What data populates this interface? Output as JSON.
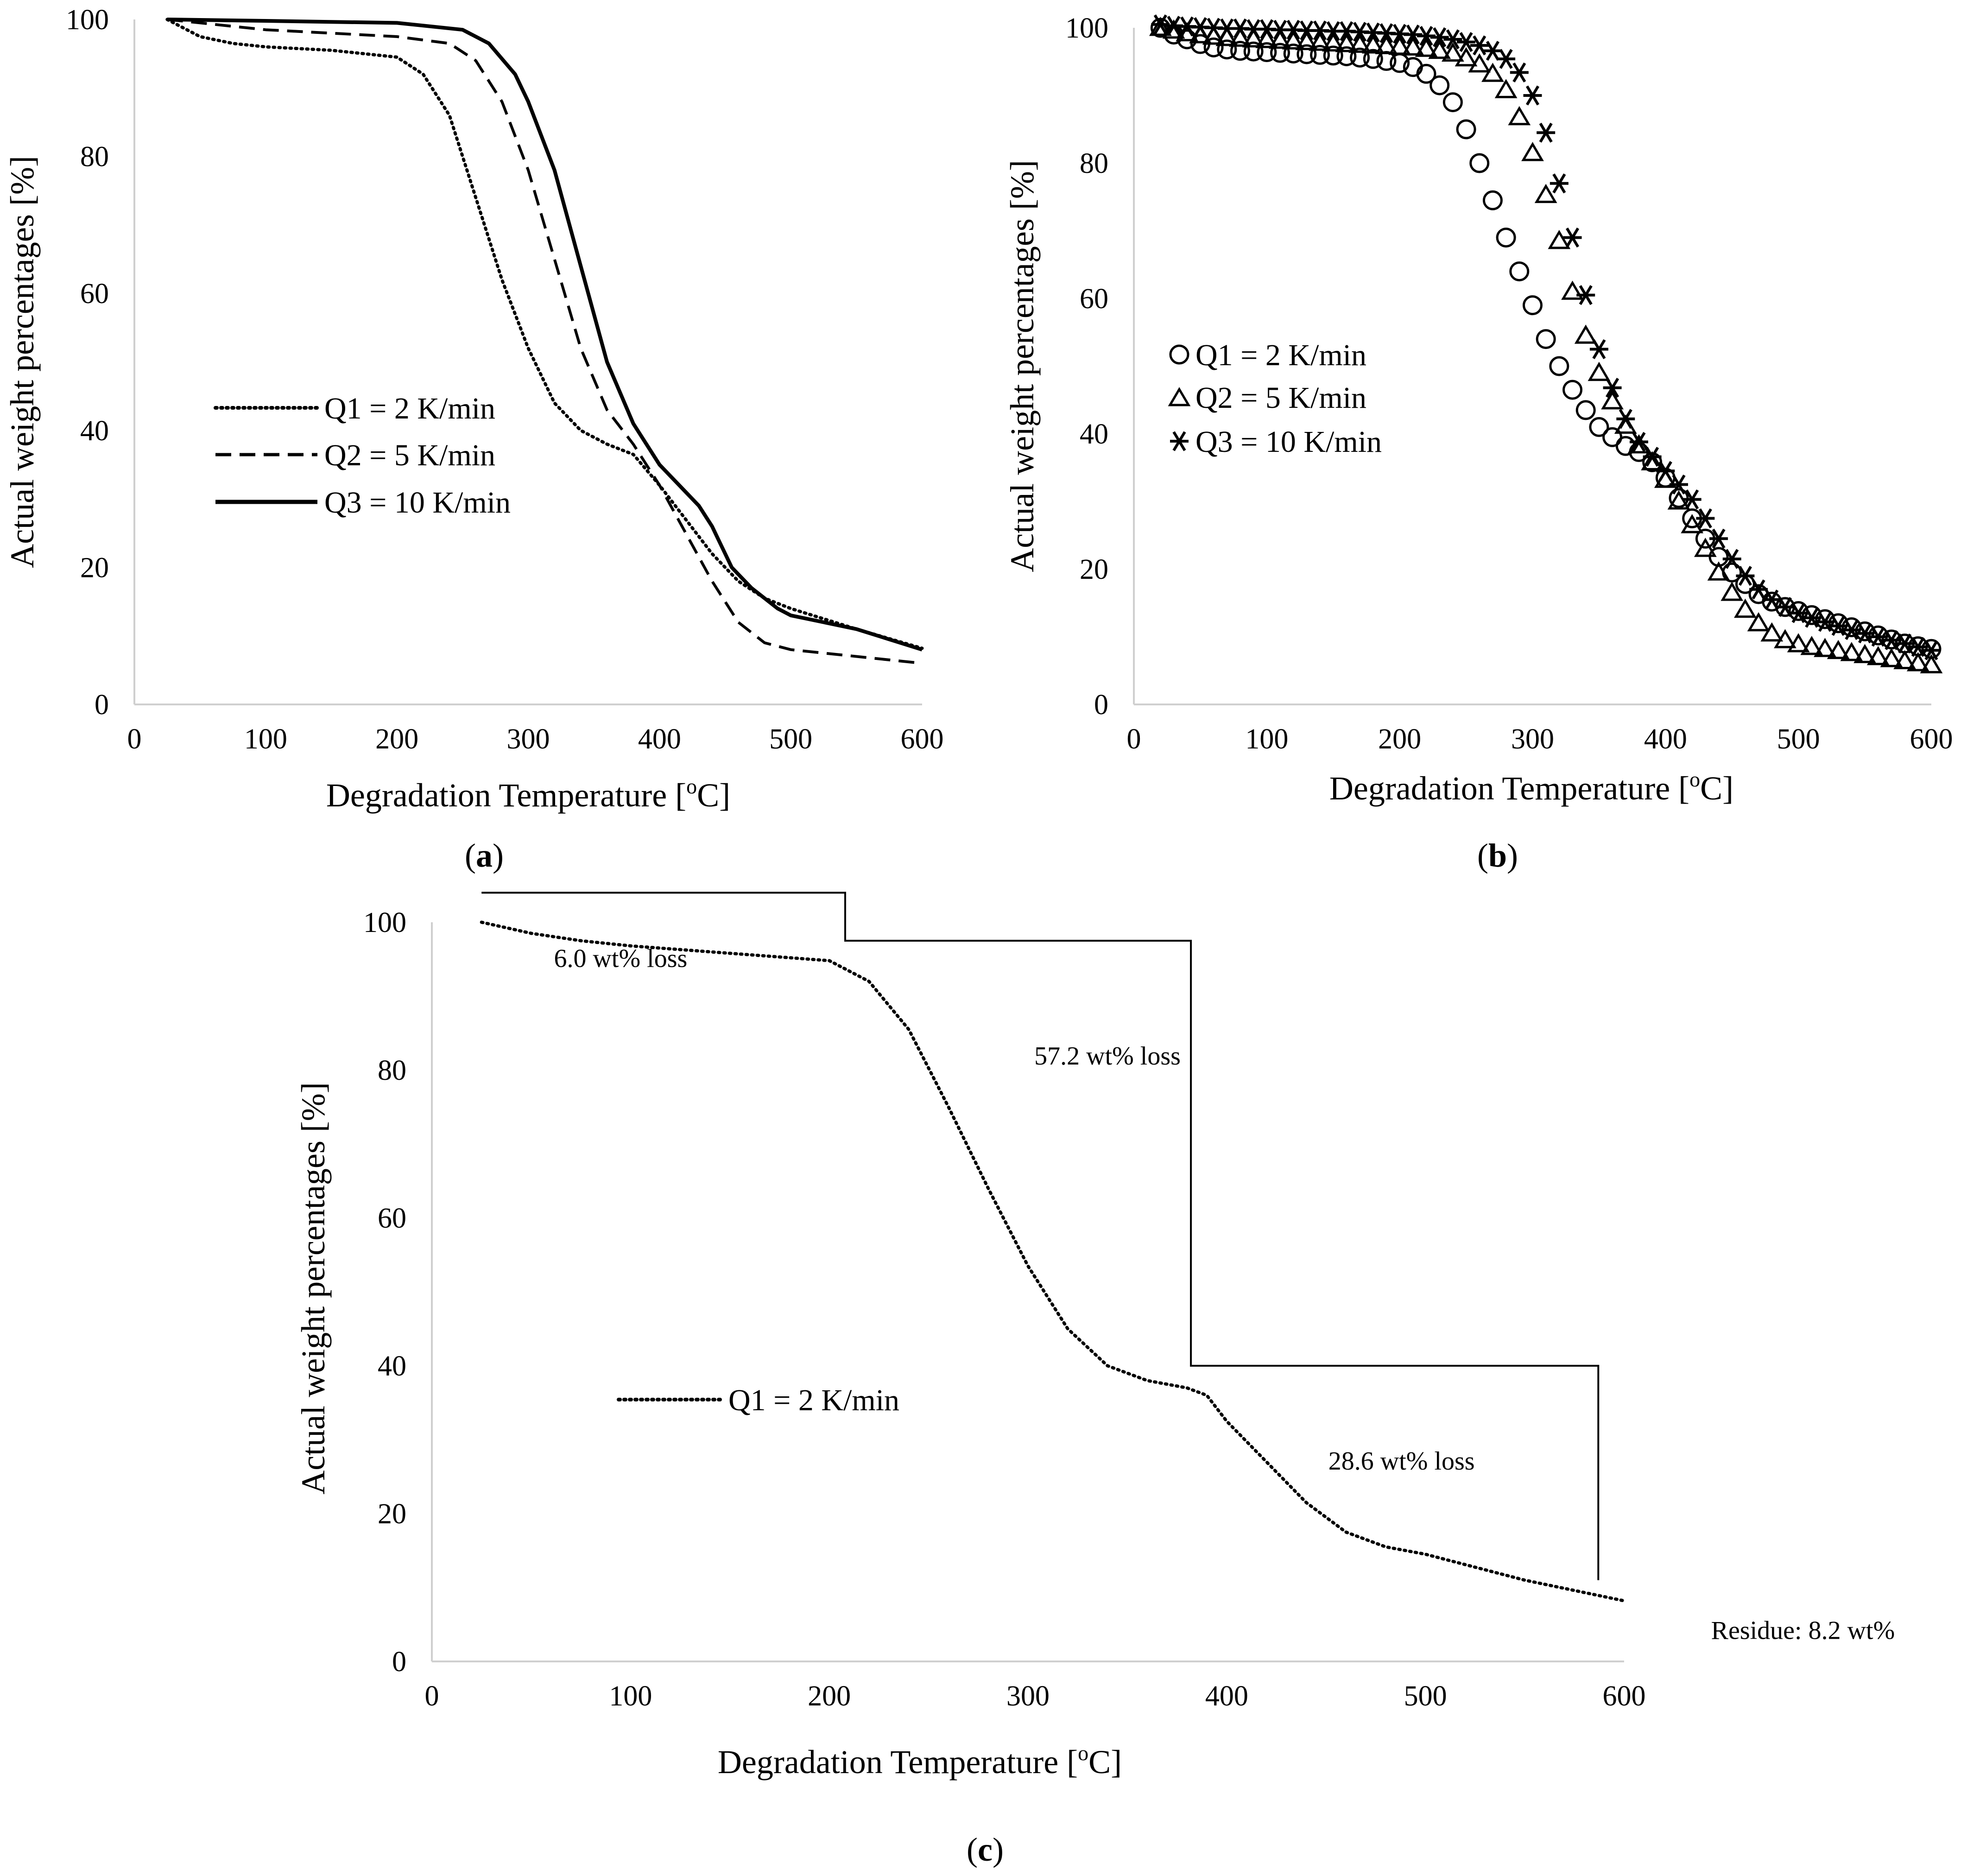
{
  "chart_data": [
    {
      "panel": "(a)",
      "panel_letter": "a",
      "type": "line",
      "xlabel": "Degradation Temperature [oC]",
      "xlabel_main": "Degradation Temperature [",
      "xlabel_sup": "o",
      "xlabel_end": "C]",
      "ylabel": "Actual weight percentages [%]",
      "xlim": [
        0,
        600
      ],
      "ylim": [
        0,
        100
      ],
      "xticks": [
        "0",
        "100",
        "200",
        "300",
        "400",
        "500",
        "600"
      ],
      "yticks": [
        "0",
        "20",
        "40",
        "60",
        "80",
        "100"
      ],
      "legend_placement": "center-left",
      "series": [
        {
          "name": "Q1 = 2 K/min",
          "style": "dotted",
          "x": [
            25,
            50,
            75,
            100,
            150,
            200,
            220,
            240,
            260,
            280,
            300,
            320,
            340,
            360,
            380,
            400,
            420,
            440,
            460,
            480,
            500,
            550,
            600
          ],
          "y": [
            100,
            97.5,
            96.5,
            96,
            95.5,
            94.5,
            92,
            86,
            74,
            62,
            52,
            44,
            40,
            38,
            36.5,
            32,
            27,
            22,
            18,
            15.5,
            14,
            11,
            8.2
          ]
        },
        {
          "name": "Q2 = 5 K/min",
          "style": "dashed",
          "x": [
            25,
            100,
            200,
            240,
            260,
            280,
            300,
            320,
            340,
            360,
            380,
            400,
            420,
            440,
            460,
            480,
            500,
            550,
            600
          ],
          "y": [
            100,
            98.5,
            97.5,
            96.5,
            94,
            88,
            78,
            65,
            52,
            43,
            38,
            32,
            25,
            18,
            12,
            9,
            8,
            7,
            6
          ]
        },
        {
          "name": "Q3 = 10 K/min",
          "style": "solid",
          "x": [
            25,
            100,
            200,
            250,
            270,
            290,
            300,
            320,
            340,
            360,
            380,
            400,
            420,
            430,
            440,
            450,
            455,
            470,
            490,
            500,
            550,
            600
          ],
          "y": [
            100,
            99.8,
            99.5,
            98.5,
            96.5,
            92,
            88,
            78,
            64,
            50,
            41,
            35,
            31,
            29,
            26,
            22,
            20,
            17,
            14,
            13,
            11,
            8
          ]
        }
      ]
    },
    {
      "panel": "(b)",
      "panel_letter": "b",
      "type": "scatter",
      "xlabel": "Degradation Temperature [oC]",
      "xlabel_main": "Degradation Temperature [",
      "xlabel_sup": "o",
      "xlabel_end": "C]",
      "ylabel": "Actual weight percentages [%]",
      "xlim": [
        0,
        600
      ],
      "ylim": [
        0,
        100
      ],
      "xticks": [
        "0",
        "100",
        "200",
        "300",
        "400",
        "500",
        "600"
      ],
      "yticks": [
        "0",
        "20",
        "40",
        "60",
        "80",
        "100"
      ],
      "legend_placement": "center-left",
      "series": [
        {
          "name": "Q1 = 2 K/min",
          "marker": "circle",
          "x": [
            20,
            30,
            40,
            50,
            60,
            70,
            80,
            90,
            100,
            110,
            120,
            130,
            140,
            150,
            160,
            170,
            180,
            190,
            200,
            210,
            220,
            230,
            240,
            250,
            260,
            270,
            280,
            290,
            300,
            310,
            320,
            330,
            340,
            350,
            360,
            370,
            380,
            390,
            400,
            410,
            420,
            430,
            440,
            450,
            460,
            470,
            480,
            490,
            500,
            510,
            520,
            530,
            540,
            550,
            560,
            570,
            580,
            590,
            600
          ],
          "y": [
            100,
            99,
            98.3,
            97.6,
            97.1,
            96.8,
            96.6,
            96.5,
            96.4,
            96.3,
            96.2,
            96.1,
            96,
            95.9,
            95.8,
            95.6,
            95.4,
            95.1,
            94.8,
            94.2,
            93.2,
            91.5,
            89,
            85,
            80,
            74.5,
            69,
            64,
            59,
            54,
            50,
            46.5,
            43.5,
            41,
            39.5,
            38.2,
            37.3,
            35.8,
            33.5,
            30.5,
            27.5,
            24.5,
            21.8,
            19.5,
            17.8,
            16.3,
            15.2,
            14.4,
            13.8,
            13.2,
            12.6,
            12,
            11.4,
            10.8,
            10.2,
            9.6,
            9,
            8.6,
            8.2
          ]
        },
        {
          "name": "Q2 = 5 K/min",
          "marker": "triangle",
          "x": [
            20,
            30,
            40,
            50,
            60,
            70,
            80,
            90,
            100,
            110,
            120,
            130,
            140,
            150,
            160,
            170,
            180,
            190,
            200,
            210,
            220,
            230,
            240,
            250,
            260,
            270,
            280,
            290,
            300,
            310,
            320,
            330,
            340,
            350,
            360,
            370,
            380,
            390,
            400,
            410,
            420,
            430,
            440,
            450,
            460,
            470,
            480,
            490,
            500,
            510,
            520,
            530,
            540,
            550,
            560,
            570,
            580,
            590,
            600
          ],
          "y": [
            100,
            99.6,
            99.2,
            98.9,
            98.7,
            98.5,
            98.4,
            98.3,
            98.2,
            98.1,
            98,
            97.9,
            97.8,
            97.7,
            97.6,
            97.5,
            97.4,
            97.3,
            97.2,
            97.1,
            96.9,
            96.6,
            96.2,
            95.5,
            94.6,
            93.2,
            90.8,
            86.8,
            81.5,
            75.3,
            68.5,
            61,
            54.5,
            49,
            44.8,
            41.2,
            38.3,
            35.8,
            33.2,
            30,
            26.5,
            23,
            19.5,
            16.5,
            14,
            12,
            10.5,
            9.5,
            8.9,
            8.5,
            8.2,
            7.9,
            7.6,
            7.3,
            7,
            6.7,
            6.4,
            6.1,
            5.8
          ]
        },
        {
          "name": "Q3 = 10 K/min",
          "marker": "asterisk",
          "x": [
            20,
            30,
            40,
            50,
            60,
            70,
            80,
            90,
            100,
            110,
            120,
            130,
            140,
            150,
            160,
            170,
            180,
            190,
            200,
            210,
            220,
            230,
            240,
            250,
            260,
            270,
            280,
            290,
            300,
            310,
            320,
            330,
            340,
            350,
            360,
            370,
            380,
            390,
            400,
            410,
            420,
            430,
            440,
            450,
            460,
            470,
            480,
            490,
            500,
            510,
            520,
            530,
            540,
            550,
            560,
            570,
            580,
            590,
            600
          ],
          "y": [
            100.5,
            100.3,
            100.2,
            100.1,
            100,
            99.9,
            99.9,
            99.8,
            99.8,
            99.7,
            99.7,
            99.6,
            99.6,
            99.5,
            99.5,
            99.4,
            99.3,
            99.2,
            99.1,
            99,
            98.8,
            98.6,
            98.3,
            97.9,
            97.4,
            96.6,
            95.4,
            93.4,
            90,
            84.5,
            77,
            69,
            60.5,
            52.5,
            46.8,
            42.2,
            38.8,
            36.6,
            34.5,
            32.5,
            30.3,
            27.5,
            24.5,
            21.5,
            19,
            17,
            15.5,
            14.4,
            13.5,
            12.8,
            12.2,
            11.6,
            11,
            10.5,
            10,
            9.5,
            9,
            8.5,
            8
          ]
        }
      ]
    },
    {
      "panel": "(c)",
      "panel_letter": "c",
      "type": "line",
      "xlabel": "Degradation Temperature [oC]",
      "xlabel_main": "Degradation Temperature [",
      "xlabel_sup": "o",
      "xlabel_end": "C]",
      "ylabel": "Actual weight percentages [%]",
      "xlim": [
        0,
        600
      ],
      "ylim": [
        0,
        100
      ],
      "xticks": [
        "0",
        "100",
        "200",
        "300",
        "400",
        "500",
        "600"
      ],
      "yticks": [
        "0",
        "20",
        "40",
        "60",
        "80",
        "100"
      ],
      "legend_placement": "center-left",
      "series": [
        {
          "name": "Q1 = 2 K/min",
          "style": "dotted",
          "x": [
            25,
            50,
            75,
            100,
            150,
            200,
            220,
            240,
            260,
            280,
            300,
            320,
            340,
            360,
            380,
            390,
            400,
            420,
            440,
            460,
            480,
            500,
            550,
            600
          ],
          "y": [
            100,
            98.5,
            97.5,
            96.8,
            95.8,
            94.8,
            92,
            85.5,
            75,
            64,
            53.5,
            45,
            40,
            38,
            37,
            36,
            32.5,
            27,
            21.5,
            17.5,
            15.5,
            14.5,
            11,
            8.2
          ]
        }
      ],
      "step_line": {
        "x": [
          25,
          208,
          208,
          382,
          382,
          587,
          587
        ],
        "y": [
          104,
          104,
          97.5,
          97.5,
          40,
          40,
          11
        ]
      },
      "annotations": [
        {
          "text": "6.0 wt% loss",
          "x": 95,
          "y": 95.2
        },
        {
          "text": "57.2 wt% loss",
          "x": 340,
          "y": 82
        },
        {
          "text": "28.6 wt% loss",
          "x": 488,
          "y": 27.2
        },
        {
          "text": "Residue: 8.2 wt%",
          "x": 690,
          "y": 4.3
        }
      ]
    }
  ]
}
